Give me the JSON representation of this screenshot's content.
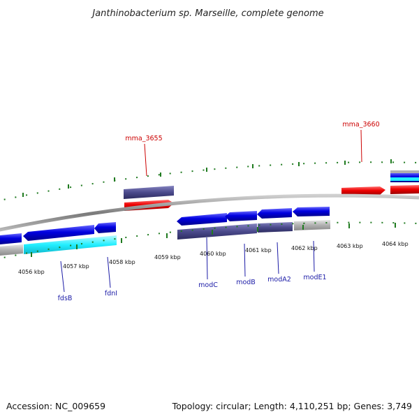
{
  "title": "Janthinobacterium sp. Marseille, complete genome",
  "footer": {
    "accession": "Accession: NC_009659",
    "summary": "Topology: circular; Length: 4,110,251 bp; Genes: 3,749"
  },
  "scale_labels": [
    "4056 kbp",
    "4057 kbp",
    "4058 kbp",
    "4059 kbp",
    "4060 kbp",
    "4061 kbp",
    "4062 kbp",
    "4063 kbp",
    "4064 kbp"
  ],
  "gene_labels": {
    "outer": [
      "mma_3655",
      "mma_3660"
    ],
    "inner": [
      "fdsB",
      "fdnI",
      "modC",
      "modB",
      "modA2",
      "modE1"
    ]
  },
  "colors": {
    "cds_forward": "#ee0000",
    "cds_reverse": "#0000dd",
    "cog_purple": "#4b4a8c",
    "cog_cyan": "#22eeff",
    "cog_grey": "#b0b0b0",
    "backbone": "#8a8a8a",
    "ticks": "#1f7a1f",
    "label_red": "#cc0000",
    "label_blue": "#1a1aa6"
  }
}
